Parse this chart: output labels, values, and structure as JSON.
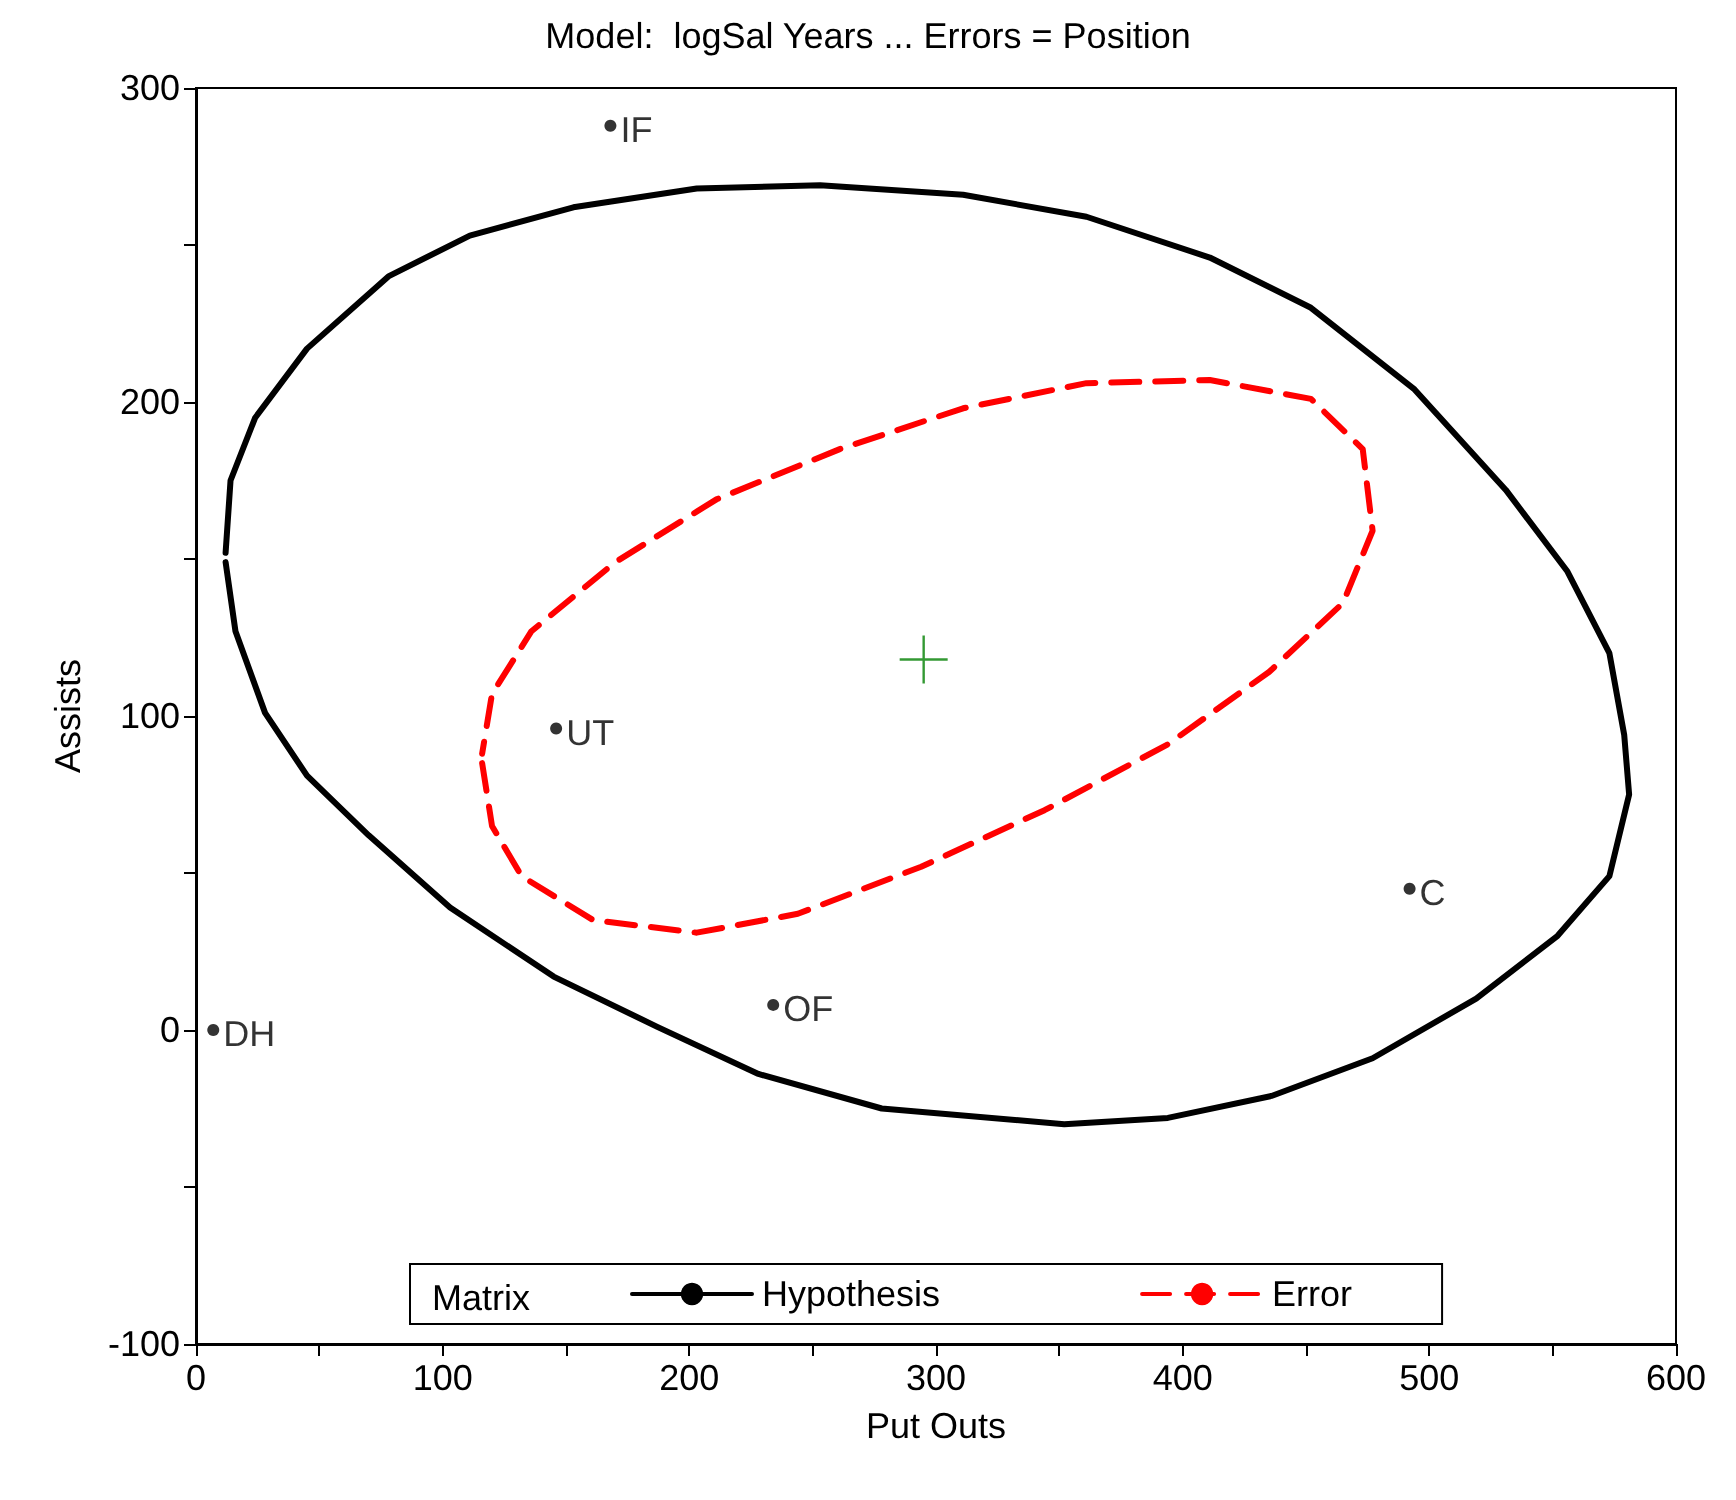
{
  "chart_data": {
    "type": "line",
    "title": "Model:  logSal Years ... Errors = Position",
    "xlabel": "Put Outs",
    "ylabel": "Assists",
    "legend_title": "Matrix",
    "xlim": [
      0,
      600
    ],
    "xticks": [
      0,
      {
        "value": 50,
        "label": null
      },
      100,
      {
        "value": 150,
        "label": null
      },
      200,
      {
        "value": 250,
        "label": null
      },
      300,
      {
        "value": 350,
        "label": null
      },
      400,
      {
        "value": 450,
        "label": null
      },
      500,
      {
        "value": 550,
        "label": null
      },
      600
    ],
    "ylim": [
      -100,
      300
    ],
    "yticks": [
      -100,
      {
        "value": -50,
        "label": null
      },
      0,
      {
        "value": 50,
        "label": null
      },
      100,
      {
        "value": 150,
        "label": null
      },
      200,
      {
        "value": 250,
        "label": null
      },
      300
    ],
    "grid": false,
    "legend": "bottom",
    "series": [
      {
        "name": "Hypothesis",
        "color": "#000000",
        "line_style": "solid",
        "marker": "none",
        "x": [
          12,
          16,
          28,
          45,
          70,
          103,
          145,
          187,
          228,
          278,
          352,
          394,
          436,
          477,
          519,
          552,
          573,
          581,
          579,
          573,
          556,
          531,
          494,
          452,
          411,
          361,
          311,
          253,
          203,
          153,
          111,
          78,
          45,
          24,
          14,
          12
        ],
        "values": [
          149,
          127,
          101,
          81,
          62,
          39,
          17,
          1,
          -14,
          -25,
          -30,
          -28,
          -21,
          -9,
          10,
          30,
          49,
          75,
          94,
          120,
          146,
          172,
          204,
          230,
          246,
          259,
          266,
          269,
          268,
          262,
          253,
          240,
          217,
          195,
          175,
          152
        ]
      },
      {
        "name": "Error",
        "color": "#ff0000",
        "line_style": "dashed",
        "marker": "none",
        "x": [
          116,
          120,
          132,
          161,
          203,
          244,
          294,
          344,
          394,
          435,
          465,
          477,
          473,
          452,
          411,
          361,
          311,
          261,
          211,
          170,
          136,
          120,
          116
        ],
        "values": [
          85,
          65,
          49,
          35,
          31,
          37,
          52,
          70,
          91,
          114,
          136,
          159,
          185,
          201,
          207,
          206,
          198,
          185,
          169,
          149,
          127,
          107,
          88
        ]
      },
      {
        "type": "scatter",
        "color": "#000000",
        "marker": "circle",
        "x": [
          168,
          146,
          7,
          234,
          492
        ],
        "values": [
          288,
          96,
          0,
          8,
          45
        ]
      },
      {
        "type": "scatter",
        "color": "#008000",
        "marker": "cross",
        "x": [
          295
        ],
        "values": [
          118
        ]
      }
    ],
    "annotations": [
      {
        "text": "IF",
        "x": 168,
        "y": 288
      },
      {
        "text": "UT",
        "x": 146,
        "y": 96
      },
      {
        "text": "DH",
        "x": 7,
        "y": 0
      },
      {
        "text": "OF",
        "x": 234,
        "y": 8
      },
      {
        "text": "C",
        "x": 492,
        "y": 45
      }
    ]
  }
}
